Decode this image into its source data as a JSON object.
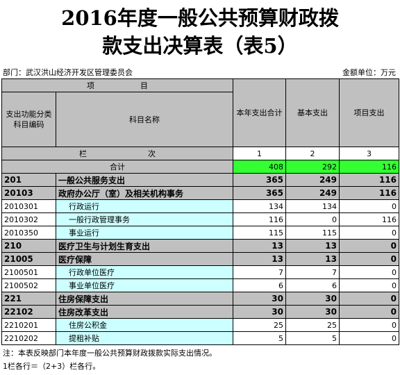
{
  "title": {
    "line1": "2016年度一般公共预算财政拨",
    "line2": "款支出决算表（表5）"
  },
  "dept_label": "部门：武汉洪山经济开发区管理委员会",
  "unit_label": "金额单位：万元",
  "header": {
    "item": "项　　　　　　目",
    "code": "支出功能分类科目编码",
    "name": "科目名称",
    "col_total": "本年支出合计",
    "col_basic": "基本支出",
    "col_project": "项目支出",
    "lanci": "栏　　　　　　　　次",
    "n1": "1",
    "n2": "2",
    "n3": "3"
  },
  "total_row": {
    "label": "合计",
    "total": "408",
    "basic": "292",
    "project": "116"
  },
  "rows": [
    {
      "code": "201",
      "name": "一般公共服务支出",
      "total": "365",
      "basic": "249",
      "project": "116"
    },
    {
      "code": "20103",
      "name": "政府办公厅（室）及相关机构事务",
      "total": "365",
      "basic": "249",
      "project": "116"
    },
    {
      "code": "2010301",
      "name": "行政运行",
      "total": "134",
      "basic": "134",
      "project": "0"
    },
    {
      "code": "2010302",
      "name": "一般行政管理事务",
      "total": "116",
      "basic": "0",
      "project": "116"
    },
    {
      "code": "2010350",
      "name": "事业运行",
      "total": "115",
      "basic": "115",
      "project": "0"
    },
    {
      "code": "210",
      "name": "医疗卫生与计划生育支出",
      "total": "13",
      "basic": "13",
      "project": "0"
    },
    {
      "code": "21005",
      "name": "医疗保障",
      "total": "13",
      "basic": "13",
      "project": "0"
    },
    {
      "code": "2100501",
      "name": "行政单位医疗",
      "total": "7",
      "basic": "7",
      "project": "0"
    },
    {
      "code": "2100502",
      "name": "事业单位医疗",
      "total": "6",
      "basic": "6",
      "project": "0"
    },
    {
      "code": "221",
      "name": "住房保障支出",
      "total": "30",
      "basic": "30",
      "project": "0"
    },
    {
      "code": "22102",
      "name": "住房改革支出",
      "total": "30",
      "basic": "30",
      "project": "0"
    },
    {
      "code": "2210201",
      "name": "住房公积金",
      "total": "25",
      "basic": "25",
      "project": "0"
    },
    {
      "code": "2210202",
      "name": "提租补贴",
      "total": "5",
      "basic": "5",
      "project": "0"
    }
  ],
  "notes": {
    "line1": "注：本表反映部门本年度一般公共预算财政拨款实际支出情况。",
    "line2": "1栏各行＝（2+3）栏各行。"
  }
}
